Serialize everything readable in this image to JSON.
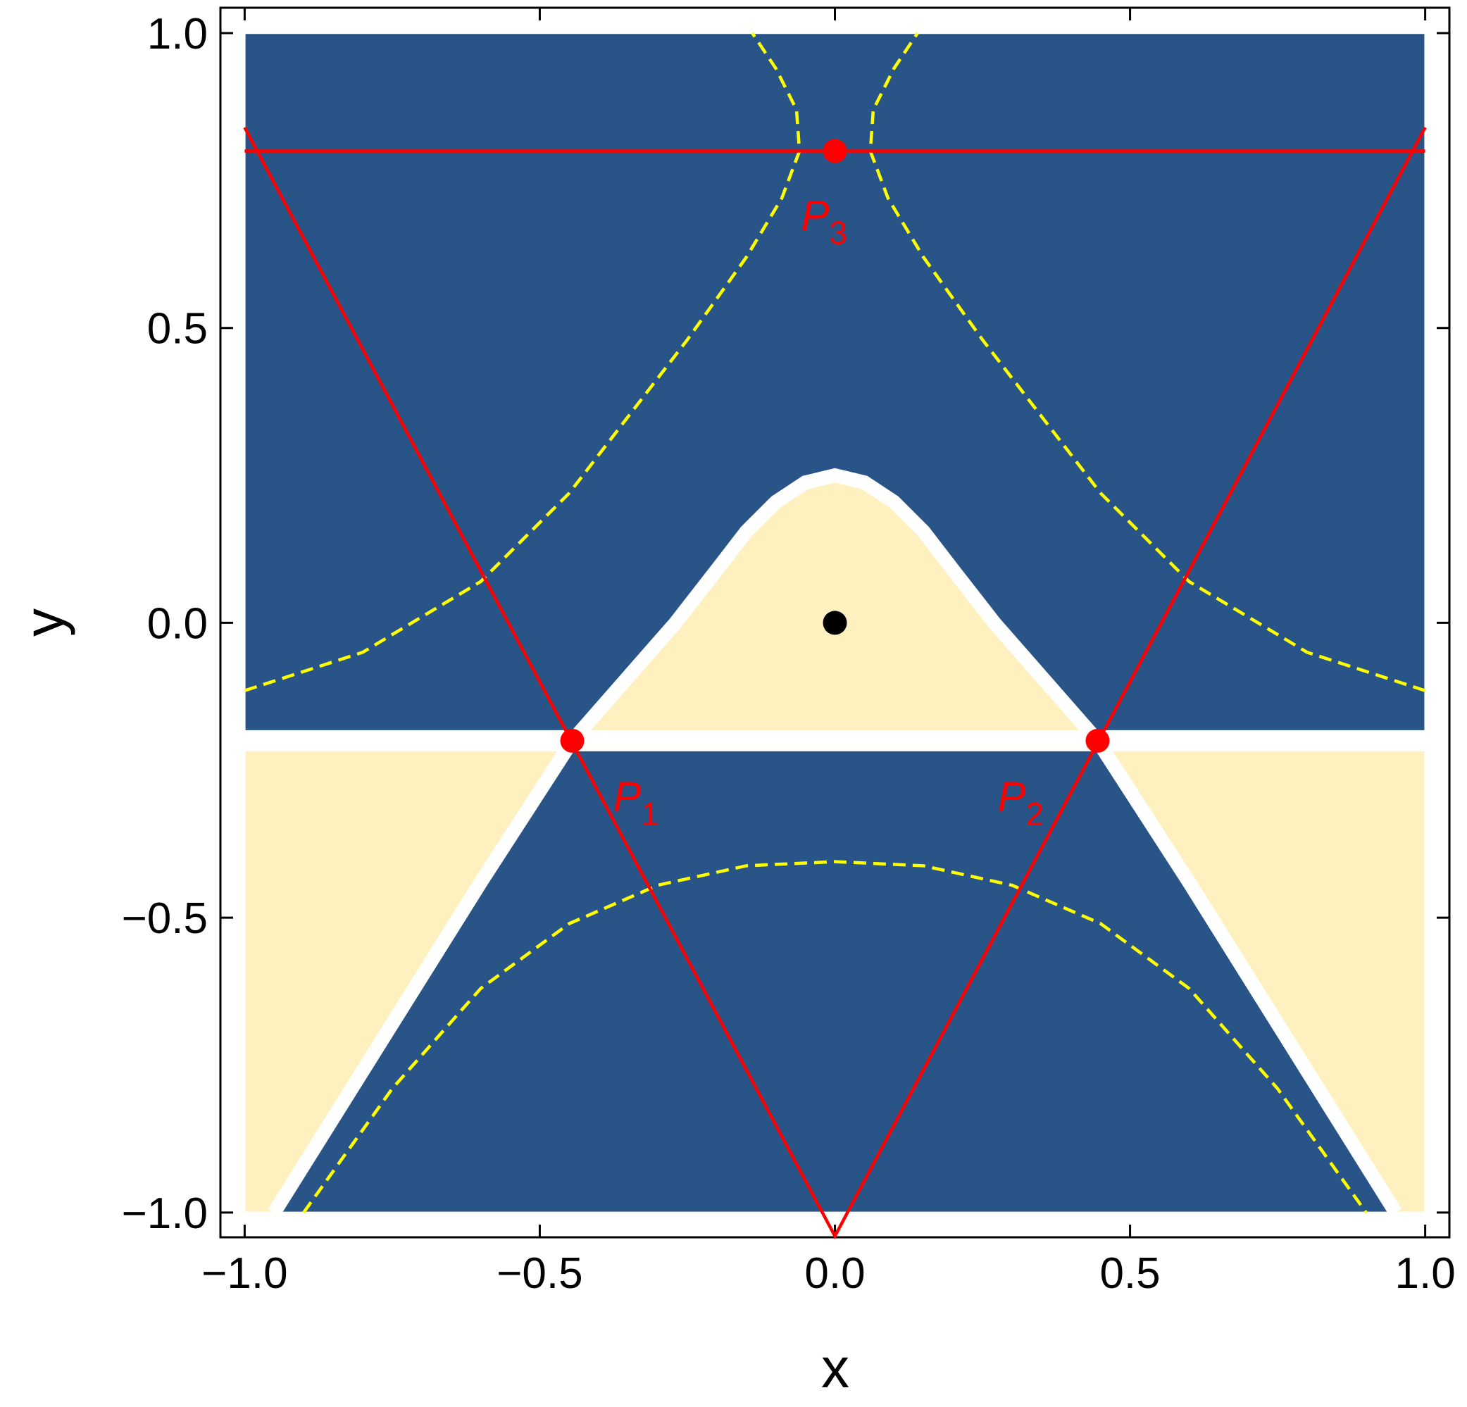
{
  "chart_data": {
    "type": "scatter",
    "xlabel": "x",
    "ylabel": "y",
    "xlim": [
      -1.041,
      1.041
    ],
    "ylim": [
      -1.042,
      1.043
    ],
    "xticks": [
      {
        "value": -1,
        "label": "−1.0"
      },
      {
        "value": -0.5,
        "label": "−0.5"
      },
      {
        "value": 0,
        "label": "0.0"
      },
      {
        "value": 0.5,
        "label": "0.5"
      },
      {
        "value": 1,
        "label": "1.0"
      }
    ],
    "yticks": [
      {
        "value": -1,
        "label": "−1.0"
      },
      {
        "value": -0.5,
        "label": "−0.5"
      },
      {
        "value": 0,
        "label": "0.0"
      },
      {
        "value": 0.5,
        "label": "0.5"
      },
      {
        "value": 1,
        "label": "1.0"
      }
    ],
    "lines": [
      {
        "color": "#ff0000",
        "x": [
          -1,
          1
        ],
        "y": [
          0.8,
          0.8
        ]
      },
      {
        "color": "#ff0000",
        "x": [
          -1,
          0,
          1
        ],
        "y": [
          0.84,
          -1.04,
          0.84
        ]
      }
    ],
    "points": {
      "x": [
        -0.445,
        0.445,
        0,
        0
      ],
      "y": [
        -0.2,
        -0.2,
        0.8,
        0
      ],
      "colors": [
        "#ff0000",
        "#ff0000",
        "#ff0000",
        "#000000"
      ],
      "labels": [
        "P",
        "P",
        "P",
        null
      ],
      "subscripts": [
        "1",
        "2",
        "3",
        null
      ]
    }
  }
}
